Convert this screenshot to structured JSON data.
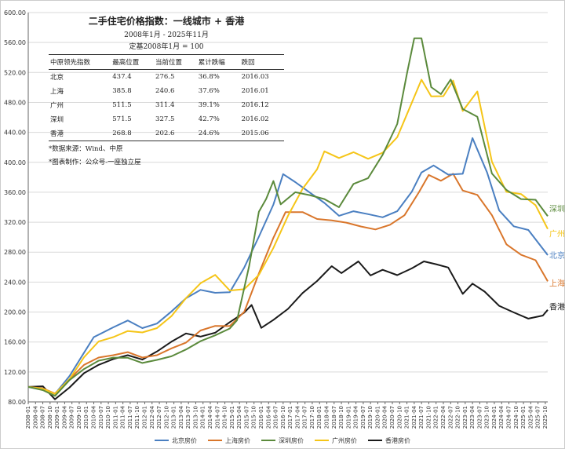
{
  "chart_data": {
    "type": "line",
    "title": "二手住宅价格指数：一线城市 + 香港",
    "subtitle": "2008年1月 - 2025年11月",
    "base_note": "定基2008年1月 = 100",
    "ylim": [
      80,
      600
    ],
    "yticks": [
      "80.00",
      "120.00",
      "160.00",
      "200.00",
      "240.00",
      "280.00",
      "320.00",
      "360.00",
      "400.00",
      "440.00",
      "480.00",
      "520.00",
      "560.00",
      "600.00"
    ],
    "grid": "horizontal",
    "legend_position": "bottom",
    "x_start": "2008-01",
    "x_end": "2025-11",
    "x_tick_labels": [
      "2008-01",
      "2008-04",
      "2008-07",
      "2008-10",
      "2009-01",
      "2009-04",
      "2009-07",
      "2009-10",
      "2010-01",
      "2010-04",
      "2010-07",
      "2010-10",
      "2011-01",
      "2011-04",
      "2011-07",
      "2011-10",
      "2012-01",
      "2012-04",
      "2012-07",
      "2012-10",
      "2013-01",
      "2013-04",
      "2013-07",
      "2013-10",
      "2014-01",
      "2014-04",
      "2014-07",
      "2014-10",
      "2015-01",
      "2015-04",
      "2015-07",
      "2015-10",
      "2016-01",
      "2016-04",
      "2016-07",
      "2016-10",
      "2017-01",
      "2017-04",
      "2017-07",
      "2017-10",
      "2018-01",
      "2018-04",
      "2018-07",
      "2018-10",
      "2019-01",
      "2019-04",
      "2019-07",
      "2019-10",
      "2020-01",
      "2020-04",
      "2020-07",
      "2020-10",
      "2021-01",
      "2021-04",
      "2021-07",
      "2021-10",
      "2022-01",
      "2022-04",
      "2022-07",
      "2022-10",
      "2023-01",
      "2023-04",
      "2023-07",
      "2023-10",
      "2024-01",
      "2024-04",
      "2024-07",
      "2024-10",
      "2025-01",
      "2025-04",
      "2025-07",
      "2025-10"
    ],
    "series": [
      {
        "name": "北京房价",
        "end_label": "北京",
        "color": "#4a7fc1",
        "points": [
          [
            "2008-01",
            100
          ],
          [
            "2008-07",
            97
          ],
          [
            "2008-12",
            92
          ],
          [
            "2009-06",
            115
          ],
          [
            "2009-12",
            145
          ],
          [
            "2010-04",
            165
          ],
          [
            "2010-12",
            180
          ],
          [
            "2011-06",
            188
          ],
          [
            "2011-12",
            180
          ],
          [
            "2012-06",
            185
          ],
          [
            "2012-12",
            200
          ],
          [
            "2013-06",
            220
          ],
          [
            "2013-12",
            230
          ],
          [
            "2014-06",
            225
          ],
          [
            "2014-12",
            228
          ],
          [
            "2015-06",
            260
          ],
          [
            "2015-12",
            300
          ],
          [
            "2016-06",
            345
          ],
          [
            "2016-10",
            385
          ],
          [
            "2017-03",
            375
          ],
          [
            "2017-09",
            360
          ],
          [
            "2018-03",
            345
          ],
          [
            "2018-09",
            330
          ],
          [
            "2019-03",
            335
          ],
          [
            "2019-09",
            330
          ],
          [
            "2020-03",
            328
          ],
          [
            "2020-09",
            335
          ],
          [
            "2021-03",
            360
          ],
          [
            "2021-07",
            385
          ],
          [
            "2021-12",
            395
          ],
          [
            "2022-06",
            385
          ],
          [
            "2022-12",
            385
          ],
          [
            "2023-04",
            432
          ],
          [
            "2023-10",
            385
          ],
          [
            "2024-03",
            335
          ],
          [
            "2024-09",
            316
          ],
          [
            "2025-03",
            310
          ],
          [
            "2025-11",
            276
          ]
        ]
      },
      {
        "name": "上海房价",
        "end_label": "上海",
        "color": "#d9762b",
        "points": [
          [
            "2008-01",
            100
          ],
          [
            "2008-07",
            98
          ],
          [
            "2008-12",
            92
          ],
          [
            "2009-06",
            110
          ],
          [
            "2009-12",
            128
          ],
          [
            "2010-06",
            140
          ],
          [
            "2010-12",
            142
          ],
          [
            "2011-06",
            145
          ],
          [
            "2011-12",
            140
          ],
          [
            "2012-06",
            142
          ],
          [
            "2012-12",
            150
          ],
          [
            "2013-06",
            160
          ],
          [
            "2013-12",
            175
          ],
          [
            "2014-06",
            180
          ],
          [
            "2014-12",
            182
          ],
          [
            "2015-06",
            200
          ],
          [
            "2015-12",
            250
          ],
          [
            "2016-06",
            300
          ],
          [
            "2016-11",
            335
          ],
          [
            "2017-06",
            332
          ],
          [
            "2017-12",
            325
          ],
          [
            "2018-06",
            322
          ],
          [
            "2018-12",
            318
          ],
          [
            "2019-06",
            315
          ],
          [
            "2019-12",
            310
          ],
          [
            "2020-06",
            315
          ],
          [
            "2020-12",
            330
          ],
          [
            "2021-06",
            360
          ],
          [
            "2021-10",
            382
          ],
          [
            "2022-03",
            375
          ],
          [
            "2022-08",
            385
          ],
          [
            "2022-12",
            362
          ],
          [
            "2023-06",
            355
          ],
          [
            "2023-12",
            330
          ],
          [
            "2024-06",
            290
          ],
          [
            "2024-12",
            275
          ],
          [
            "2025-06",
            270
          ],
          [
            "2025-11",
            241
          ]
        ]
      },
      {
        "name": "深圳房价",
        "end_label": "深圳",
        "color": "#5b8a3c",
        "points": [
          [
            "2008-01",
            100
          ],
          [
            "2008-07",
            95
          ],
          [
            "2008-12",
            88
          ],
          [
            "2009-06",
            108
          ],
          [
            "2009-12",
            125
          ],
          [
            "2010-06",
            135
          ],
          [
            "2010-12",
            138
          ],
          [
            "2011-06",
            140
          ],
          [
            "2011-12",
            132
          ],
          [
            "2012-06",
            135
          ],
          [
            "2012-12",
            142
          ],
          [
            "2013-06",
            150
          ],
          [
            "2013-12",
            160
          ],
          [
            "2014-06",
            170
          ],
          [
            "2014-12",
            178
          ],
          [
            "2015-03",
            190
          ],
          [
            "2015-08",
            260
          ],
          [
            "2015-12",
            335
          ],
          [
            "2016-03",
            350
          ],
          [
            "2016-06",
            375
          ],
          [
            "2016-09",
            345
          ],
          [
            "2017-03",
            360
          ],
          [
            "2017-09",
            355
          ],
          [
            "2018-03",
            352
          ],
          [
            "2018-09",
            340
          ],
          [
            "2019-03",
            370
          ],
          [
            "2019-09",
            380
          ],
          [
            "2020-03",
            410
          ],
          [
            "2020-09",
            450
          ],
          [
            "2021-01",
            520
          ],
          [
            "2021-04",
            565
          ],
          [
            "2021-07",
            566
          ],
          [
            "2021-11",
            500
          ],
          [
            "2022-03",
            490
          ],
          [
            "2022-07",
            512
          ],
          [
            "2022-12",
            470
          ],
          [
            "2023-06",
            462
          ],
          [
            "2023-12",
            385
          ],
          [
            "2024-06",
            362
          ],
          [
            "2024-12",
            352
          ],
          [
            "2025-06",
            350
          ],
          [
            "2025-11",
            328
          ]
        ]
      },
      {
        "name": "广州房价",
        "end_label": "广州",
        "color": "#f5c518",
        "points": [
          [
            "2008-01",
            100
          ],
          [
            "2008-07",
            96
          ],
          [
            "2008-12",
            90
          ],
          [
            "2009-06",
            112
          ],
          [
            "2009-12",
            140
          ],
          [
            "2010-06",
            160
          ],
          [
            "2010-12",
            168
          ],
          [
            "2011-06",
            175
          ],
          [
            "2011-12",
            172
          ],
          [
            "2012-06",
            180
          ],
          [
            "2012-12",
            195
          ],
          [
            "2013-06",
            218
          ],
          [
            "2013-12",
            240
          ],
          [
            "2014-06",
            250
          ],
          [
            "2014-12",
            228
          ],
          [
            "2015-06",
            232
          ],
          [
            "2015-12",
            250
          ],
          [
            "2016-06",
            285
          ],
          [
            "2016-12",
            330
          ],
          [
            "2017-06",
            365
          ],
          [
            "2017-12",
            390
          ],
          [
            "2018-03",
            415
          ],
          [
            "2018-09",
            405
          ],
          [
            "2019-03",
            415
          ],
          [
            "2019-09",
            405
          ],
          [
            "2020-03",
            412
          ],
          [
            "2020-09",
            435
          ],
          [
            "2021-03",
            480
          ],
          [
            "2021-07",
            510
          ],
          [
            "2021-11",
            487
          ],
          [
            "2022-04",
            488
          ],
          [
            "2022-08",
            508
          ],
          [
            "2022-12",
            470
          ],
          [
            "2023-06",
            495
          ],
          [
            "2023-12",
            400
          ],
          [
            "2024-06",
            362
          ],
          [
            "2024-12",
            358
          ],
          [
            "2025-06",
            342
          ],
          [
            "2025-11",
            311
          ]
        ]
      },
      {
        "name": "香港房价",
        "end_label": "香港",
        "color": "#1a1a1a",
        "points": [
          [
            "2008-01",
            100
          ],
          [
            "2008-07",
            102
          ],
          [
            "2008-12",
            82
          ],
          [
            "2009-06",
            100
          ],
          [
            "2009-12",
            118
          ],
          [
            "2010-06",
            128
          ],
          [
            "2010-12",
            138
          ],
          [
            "2011-06",
            142
          ],
          [
            "2011-12",
            135
          ],
          [
            "2012-06",
            148
          ],
          [
            "2012-12",
            160
          ],
          [
            "2013-06",
            170
          ],
          [
            "2013-12",
            168
          ],
          [
            "2014-06",
            172
          ],
          [
            "2014-12",
            185
          ],
          [
            "2015-06",
            200
          ],
          [
            "2015-09",
            208
          ],
          [
            "2016-01",
            180
          ],
          [
            "2016-06",
            188
          ],
          [
            "2016-12",
            205
          ],
          [
            "2017-06",
            225
          ],
          [
            "2017-12",
            240
          ],
          [
            "2018-06",
            262
          ],
          [
            "2018-10",
            252
          ],
          [
            "2019-05",
            268
          ],
          [
            "2019-10",
            250
          ],
          [
            "2020-03",
            255
          ],
          [
            "2020-09",
            250
          ],
          [
            "2021-03",
            258
          ],
          [
            "2021-08",
            268
          ],
          [
            "2022-01",
            265
          ],
          [
            "2022-06",
            258
          ],
          [
            "2022-12",
            225
          ],
          [
            "2023-04",
            238
          ],
          [
            "2023-09",
            228
          ],
          [
            "2024-03",
            208
          ],
          [
            "2024-09",
            198
          ],
          [
            "2025-03",
            192
          ],
          [
            "2025-09",
            195
          ],
          [
            "2025-11",
            203
          ]
        ]
      }
    ]
  },
  "table": {
    "headers": [
      "中原领先指数",
      "最高位置",
      "当前位置",
      "累计跌幅",
      "跌回"
    ],
    "rows": [
      [
        "北京",
        "437.4",
        "276.5",
        "36.8%",
        "2016.03"
      ],
      [
        "上海",
        "385.8",
        "240.6",
        "37.6%",
        "2016.01"
      ],
      [
        "广州",
        "511.5",
        "311.4",
        "39.1%",
        "2016.12"
      ],
      [
        "深圳",
        "571.5",
        "327.5",
        "42.7%",
        "2016.02"
      ],
      [
        "香港",
        "268.8",
        "202.6",
        "24.6%",
        "2015.06"
      ]
    ]
  },
  "notes": {
    "source": "*数据来源：Wind、中原",
    "author": "*图表制作：公众号-一座独立屋"
  }
}
